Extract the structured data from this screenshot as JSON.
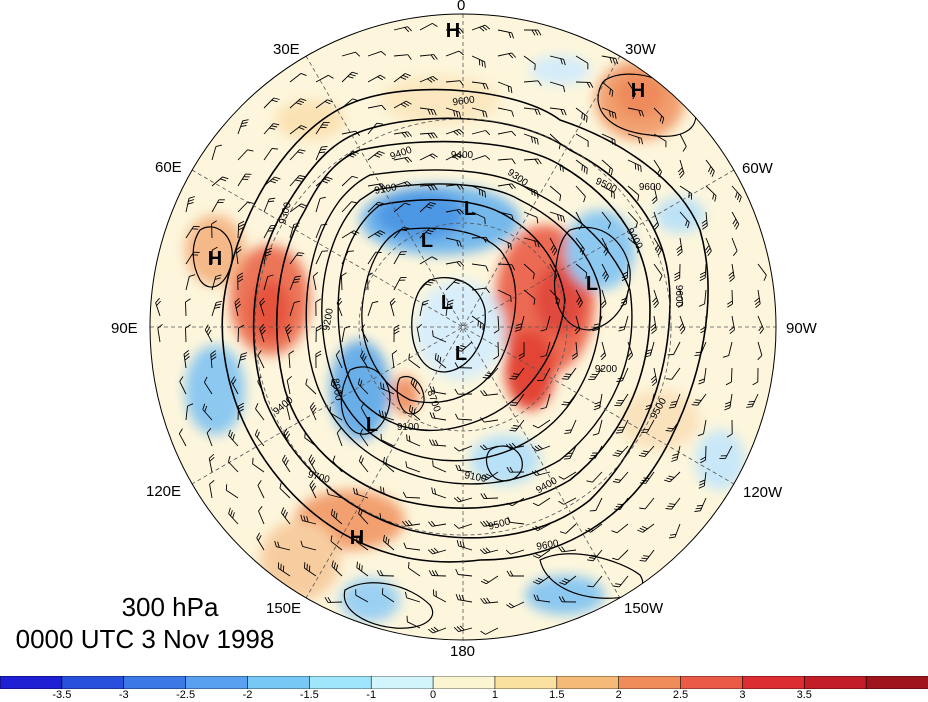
{
  "map": {
    "projection": "polar stereographic, North Pole",
    "center_lon_top": "0",
    "longitude_labels": [
      {
        "id": "lon-0",
        "text": "0"
      },
      {
        "id": "lon-30w",
        "text": "30W"
      },
      {
        "id": "lon-60w",
        "text": "60W"
      },
      {
        "id": "lon-90w",
        "text": "90W"
      },
      {
        "id": "lon-120w",
        "text": "120W"
      },
      {
        "id": "lon-150w",
        "text": "150W"
      },
      {
        "id": "lon-180",
        "text": "180"
      },
      {
        "id": "lon-150e",
        "text": "150E"
      },
      {
        "id": "lon-120e",
        "text": "120E"
      },
      {
        "id": "lon-90e",
        "text": "90E"
      },
      {
        "id": "lon-60e",
        "text": "60E"
      },
      {
        "id": "lon-30e",
        "text": "30E"
      }
    ],
    "pressure_centers": [
      {
        "type": "H"
      },
      {
        "type": "H"
      },
      {
        "type": "H"
      },
      {
        "type": "H"
      },
      {
        "type": "L"
      },
      {
        "type": "L"
      },
      {
        "type": "L"
      },
      {
        "type": "L"
      },
      {
        "type": "L"
      },
      {
        "type": "L"
      }
    ],
    "contour_labels": [
      "9600",
      "9400",
      "9400",
      "9300",
      "9100",
      "9500",
      "9600",
      "9400",
      "9200",
      "8900",
      "8700",
      "9400",
      "9700",
      "9100",
      "9400",
      "9500",
      "9600",
      "9200",
      "9300",
      "9500",
      "9600",
      "9100"
    ]
  },
  "title": {
    "level": "300 hPa",
    "time": "0000 UTC 3 Nov 1998"
  },
  "colorbar": {
    "colors": [
      "#1e1ed2",
      "#2850dc",
      "#3c78e6",
      "#5aa0f0",
      "#78c8f5",
      "#a0e6fa",
      "#d2f5fc",
      "#fcf5d2",
      "#fae1a0",
      "#f5b978",
      "#f08c5a",
      "#eb5a46",
      "#dc2d32",
      "#c31e28",
      "#a0141e"
    ],
    "labels": [
      "-3.5",
      "-3",
      "-2.5",
      "-2",
      "-1.5",
      "-1",
      "0",
      "1",
      "1.5",
      "2",
      "2.5",
      "3",
      "3.5"
    ],
    "colors_meaning": {
      "warm_anomaly": "#eb5a46",
      "cold_anomaly": "#5aa0f0",
      "near_zero": "#fdf6dc"
    }
  }
}
